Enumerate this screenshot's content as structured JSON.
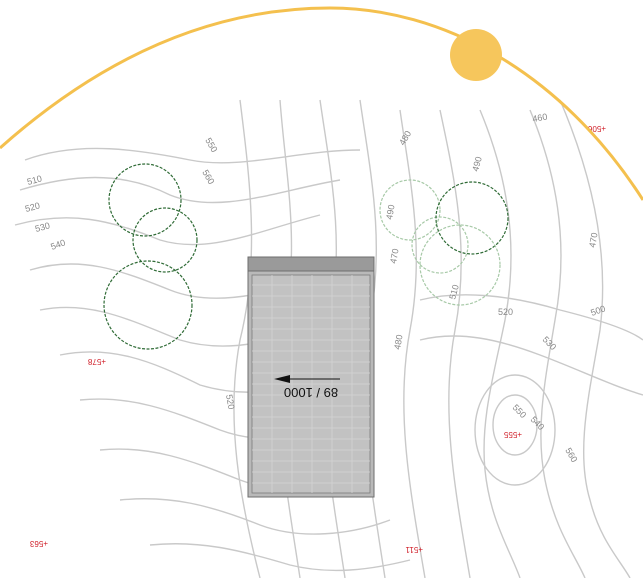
{
  "contour_labels": [
    "510",
    "520",
    "530",
    "540",
    "550",
    "560",
    "520",
    "480",
    "490",
    "470",
    "480",
    "510",
    "520",
    "530",
    "540",
    "550",
    "560",
    "470",
    "490",
    "460",
    "500"
  ],
  "spot_elevations": [
    "+578",
    "+555",
    "+563",
    "+511",
    "+506"
  ],
  "building": {
    "unit_count_label": "89 / 1000",
    "orientation_arrow": "north-arrow"
  },
  "colors": {
    "sun": "#f6c65c",
    "sun_path": "#f4c04e",
    "contour": "#c9c9c9",
    "tree": "#2f6b36",
    "spot": "#d0202a"
  }
}
